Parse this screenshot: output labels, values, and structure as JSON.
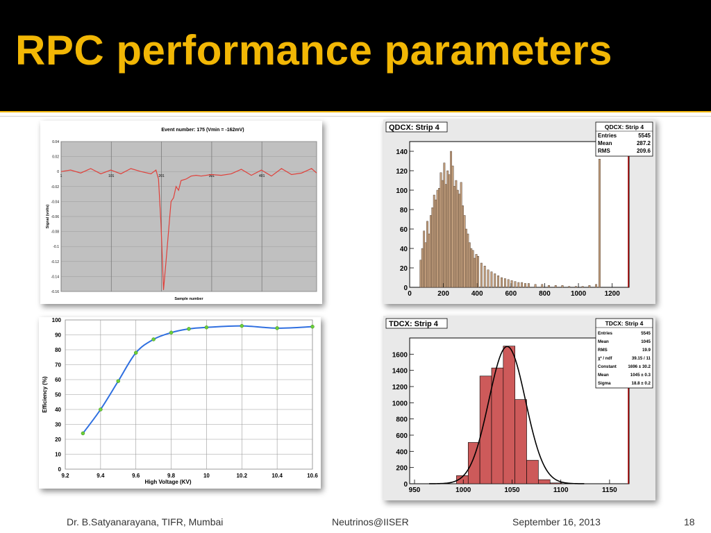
{
  "slide": {
    "title": "RPC performance parameters",
    "footer": {
      "author": "Dr. B.Satyanarayana, TIFR, Mumbai",
      "event": "Neutrinos@IISER",
      "date": "September 16, 2013",
      "page": "18"
    }
  },
  "chart_data": [
    {
      "type": "line",
      "title": "Event number:  175 (Vmin = -162mV)",
      "xlabel": "Sample number",
      "ylabel": "Signal (volts)",
      "xlim": [
        1,
        510
      ],
      "ylim": [
        -0.16,
        0.04
      ],
      "xticks": [
        "1",
        "101",
        "201",
        "301",
        "401"
      ],
      "yticks": [
        "0.04",
        "0.02",
        "0",
        "-0.02",
        "-0.04",
        "-0.06",
        "-0.08",
        "-0.1",
        "-0.12",
        "-0.14",
        "-0.16"
      ],
      "grid": true,
      "color": "#e0403a",
      "x": [
        1,
        20,
        40,
        60,
        80,
        100,
        120,
        140,
        160,
        180,
        190,
        195,
        200,
        205,
        210,
        215,
        220,
        225,
        230,
        235,
        240,
        250,
        260,
        270,
        280,
        300,
        320,
        340,
        360,
        380,
        400,
        420,
        440,
        460,
        480,
        500,
        510
      ],
      "y": [
        0,
        0.002,
        -0.002,
        0.004,
        -0.003,
        0.002,
        -0.003,
        0.004,
        0,
        -0.003,
        0.002,
        -0.01,
        -0.07,
        -0.158,
        -0.12,
        -0.08,
        -0.04,
        -0.035,
        -0.02,
        -0.025,
        -0.012,
        -0.01,
        -0.006,
        -0.005,
        -0.006,
        -0.004,
        -0.005,
        -0.003,
        0.003,
        -0.005,
        0.002,
        -0.006,
        0.004,
        -0.004,
        -0.002,
        0.004,
        -0.002
      ]
    },
    {
      "type": "bar",
      "title": "QDCX: Strip 4",
      "stats": [
        {
          "label": "Entries",
          "value": "5545"
        },
        {
          "label": "Mean",
          "value": "287.2"
        },
        {
          "label": "RMS",
          "value": "209.6"
        }
      ],
      "xlim": [
        0,
        1300
      ],
      "ylim": [
        0,
        150
      ],
      "xticks": [
        "0",
        "200",
        "400",
        "600",
        "800",
        "1000",
        "1200"
      ],
      "yticks": [
        "0",
        "20",
        "40",
        "60",
        "80",
        "100",
        "120",
        "140"
      ],
      "color": "#c4a07e",
      "bin_width": 10,
      "x": [
        60,
        70,
        80,
        90,
        100,
        110,
        120,
        130,
        140,
        150,
        160,
        170,
        180,
        190,
        200,
        210,
        220,
        230,
        240,
        250,
        260,
        270,
        280,
        290,
        300,
        310,
        320,
        330,
        340,
        350,
        360,
        370,
        380,
        390,
        400,
        420,
        440,
        460,
        480,
        500,
        520,
        540,
        560,
        580,
        600,
        620,
        640,
        660,
        680,
        700,
        740,
        780,
        820,
        860,
        900,
        940,
        980,
        1020,
        1060,
        1100,
        1120
      ],
      "values": [
        28,
        40,
        58,
        46,
        68,
        55,
        74,
        82,
        95,
        90,
        100,
        102,
        118,
        110,
        128,
        106,
        120,
        116,
        140,
        125,
        104,
        110,
        100,
        96,
        108,
        84,
        74,
        60,
        55,
        46,
        40,
        38,
        30,
        34,
        32,
        25,
        22,
        18,
        16,
        14,
        12,
        10,
        9,
        8,
        7,
        6,
        5,
        5,
        4,
        4,
        3,
        3,
        2,
        2,
        2,
        1,
        1,
        1,
        2,
        3,
        132
      ]
    },
    {
      "type": "line",
      "xlabel": "High Voltage (KV)",
      "ylabel": "Efficiency (%)",
      "xlim": [
        9.2,
        10.6
      ],
      "ylim": [
        0,
        100
      ],
      "xticks": [
        "9.2",
        "9.4",
        "9.6",
        "9.8",
        "10",
        "10.2",
        "10.4",
        "10.6"
      ],
      "yticks": [
        "0",
        "10",
        "20",
        "30",
        "40",
        "50",
        "60",
        "70",
        "80",
        "90",
        "100"
      ],
      "grid": true,
      "line_color": "#2f6fe0",
      "marker_color": "#6ccf3a",
      "x": [
        9.3,
        9.4,
        9.5,
        9.6,
        9.7,
        9.8,
        9.9,
        10.0,
        10.2,
        10.4,
        10.6
      ],
      "y": [
        24,
        40,
        59,
        78,
        87,
        91.5,
        94,
        95,
        96,
        94.5,
        95.5
      ]
    },
    {
      "type": "bar",
      "title": "TDCX: Strip 4",
      "stats": [
        {
          "label": "Entries",
          "value": "5545"
        },
        {
          "label": "Mean",
          "value": "1045"
        },
        {
          "label": "RMS",
          "value": "19.9"
        },
        {
          "label": "χ² / ndf",
          "value": "39.15 / 11"
        },
        {
          "label": "Constant",
          "value": "1696 ± 30.2"
        },
        {
          "label": "Mean",
          "value": "1045 ± 0.3"
        },
        {
          "label": "Sigma",
          "value": "18.8 ± 0.2"
        }
      ],
      "xlim": [
        945,
        1170
      ],
      "ylim": [
        0,
        1800
      ],
      "xticks": [
        "950",
        "1000",
        "1050",
        "1100",
        "1150"
      ],
      "yticks": [
        "0",
        "200",
        "400",
        "600",
        "800",
        "1000",
        "1200",
        "1400",
        "1600"
      ],
      "color": "#cd5a5a",
      "bin_width": 12,
      "x": [
        993,
        1005,
        1017,
        1029,
        1041,
        1053,
        1065,
        1077,
        1089
      ],
      "values": [
        100,
        510,
        1330,
        1430,
        1700,
        1040,
        290,
        50,
        10
      ],
      "fit": {
        "type": "gaus",
        "constant": 1696,
        "mean": 1045,
        "sigma": 18.8,
        "color": "#000000"
      }
    }
  ]
}
